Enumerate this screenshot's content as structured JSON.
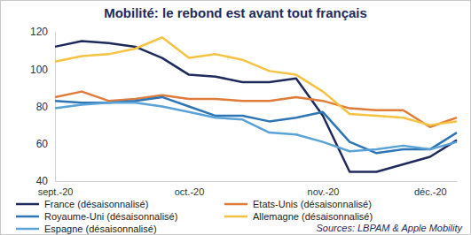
{
  "chart_data": {
    "type": "line",
    "title": "Mobilité: le rebond est avant tout français",
    "source": "Sources: LBPAM & Apple Mobility",
    "categories": [
      "sept.-20",
      null,
      null,
      null,
      null,
      "oct.-20",
      null,
      null,
      null,
      null,
      "nov.-20",
      null,
      null,
      null,
      "déc.-20",
      null
    ],
    "series": [
      {
        "name": "France (désaisonnalisé)",
        "color": "#1f2a5c",
        "values": [
          112,
          115,
          114,
          112,
          106,
          97,
          96,
          93,
          93,
          95,
          75,
          45,
          45,
          49,
          53,
          62
        ]
      },
      {
        "name": "Etats-Unis (désaisonnalisé)",
        "color": "#e07b39",
        "values": [
          85,
          88,
          83,
          84,
          86,
          84,
          84,
          83,
          83,
          85,
          83,
          79,
          78,
          78,
          69,
          74
        ]
      },
      {
        "name": "Royaume-Uni (désaisonnalisé)",
        "color": "#2e75b6",
        "values": [
          83,
          82,
          82,
          83,
          85,
          80,
          75,
          75,
          72,
          74,
          77,
          61,
          55,
          57,
          57,
          66
        ]
      },
      {
        "name": "Allemagne (désaisonnalisé)",
        "color": "#f5c242",
        "values": [
          104,
          107,
          108,
          111,
          117,
          106,
          108,
          105,
          99,
          97,
          88,
          76,
          75,
          74,
          70,
          72
        ]
      },
      {
        "name": "Espagne (désaisonnalisé)",
        "color": "#5ba3d6",
        "values": [
          79,
          81,
          82,
          82,
          80,
          77,
          74,
          73,
          66,
          65,
          61,
          56,
          57,
          59,
          57,
          61
        ]
      }
    ],
    "ylim": [
      40,
      120
    ],
    "yticks": [
      40,
      60,
      80,
      100,
      120
    ],
    "grid": false,
    "legend": "bottom"
  }
}
